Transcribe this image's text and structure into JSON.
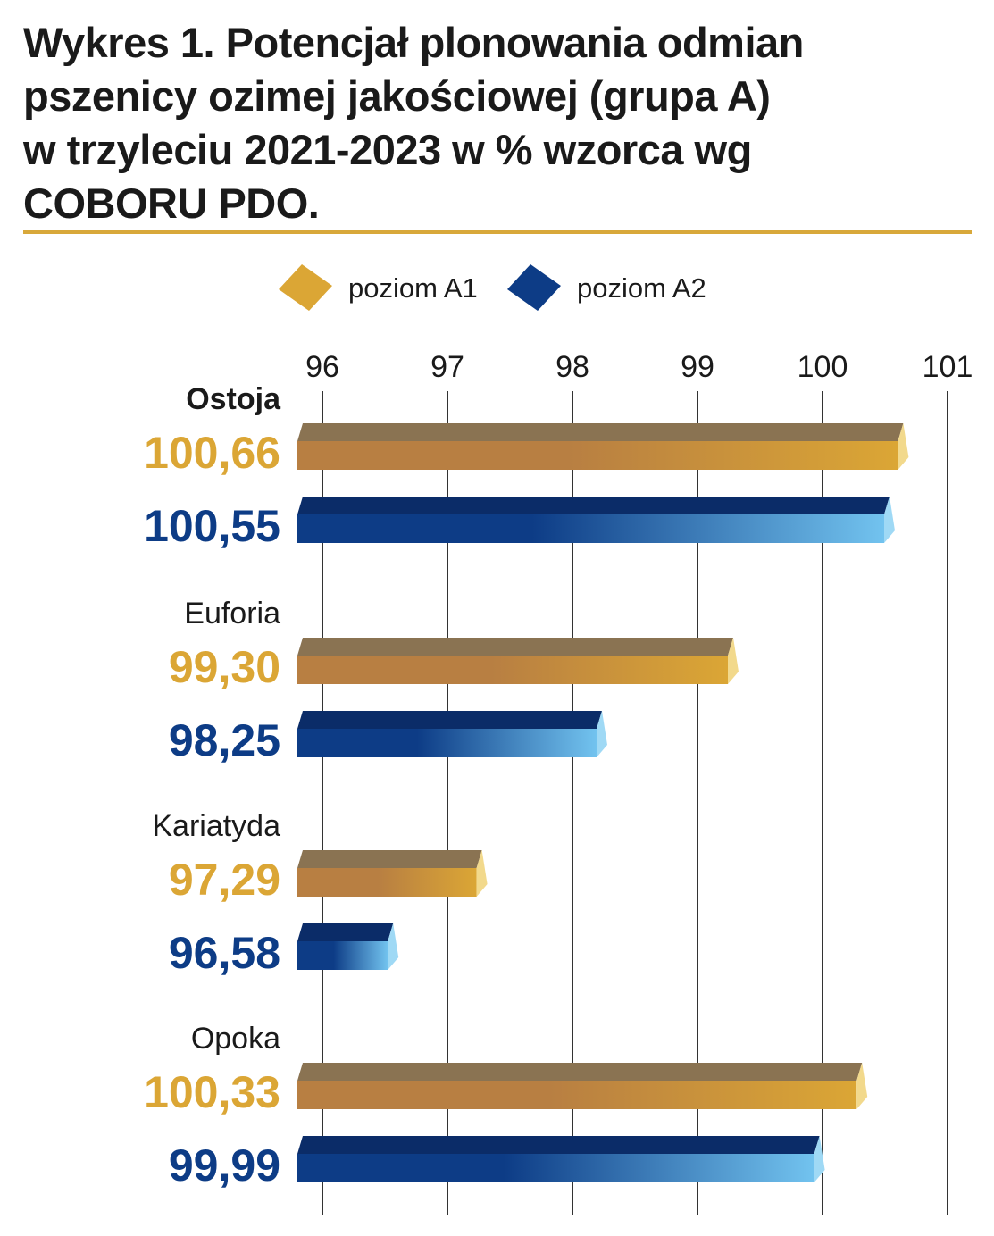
{
  "title_lines": [
    "Wykres 1. Potencjał plonowania odmian",
    "pszenicy ozimej jakościowej (grupa A)",
    "w trzyleciu 2021-2023 w % wzorca wg",
    "COBORU PDO."
  ],
  "colors": {
    "a1_dark": "#b87f42",
    "a1_light": "#dba635",
    "a1_top": "#8a7352",
    "a1_end": "#f2d98c",
    "a2_dark": "#0d3c86",
    "a2_light": "#72c3ef",
    "a2_top": "#0b2c68",
    "a2_end": "#9fd9f5",
    "rule": "#d8a83a",
    "grid": "#333333",
    "text": "#1a1a1a"
  },
  "chart_data": {
    "type": "bar",
    "orientation": "horizontal",
    "title": "Wykres 1. Potencjał plonowania odmian pszenicy ozimej jakościowej (grupa A) w trzyleciu 2021-2023 w % wzorca wg COBORU PDO.",
    "categories": [
      "Ostoja",
      "Euforia",
      "Kariatyda",
      "Opoka"
    ],
    "series": [
      {
        "name": "poziom A1",
        "values": [
          100.66,
          99.3,
          97.29,
          100.33
        ],
        "labels": [
          "100,66",
          "99,30",
          "97,29",
          "100,33"
        ]
      },
      {
        "name": "poziom A2",
        "values": [
          100.55,
          98.25,
          96.58,
          99.99
        ],
        "labels": [
          "100,55",
          "98,25",
          "96,58",
          "99,99"
        ]
      }
    ],
    "xlim": [
      96,
      101
    ],
    "ticks": [
      96,
      97,
      98,
      99,
      100,
      101
    ],
    "grid": true,
    "legend": "top",
    "bold_categories": [
      "Ostoja"
    ]
  }
}
